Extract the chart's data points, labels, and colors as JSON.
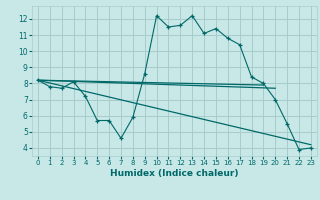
{
  "xlabel": "Humidex (Indice chaleur)",
  "bg_color": "#c8e8e8",
  "grid_color": "#a8cccc",
  "line_color": "#006868",
  "xlim": [
    -0.5,
    23.5
  ],
  "ylim": [
    3.5,
    12.8
  ],
  "yticks": [
    4,
    5,
    6,
    7,
    8,
    9,
    10,
    11,
    12
  ],
  "xticks": [
    0,
    1,
    2,
    3,
    4,
    5,
    6,
    7,
    8,
    9,
    10,
    11,
    12,
    13,
    14,
    15,
    16,
    17,
    18,
    19,
    20,
    21,
    22,
    23
  ],
  "line1_x": [
    0,
    1,
    2,
    3,
    4,
    5,
    6,
    7,
    8,
    9,
    10,
    11,
    12,
    13,
    14,
    15,
    16,
    17,
    18,
    19,
    20,
    21,
    22,
    23
  ],
  "line1_y": [
    8.2,
    7.8,
    7.7,
    8.1,
    7.2,
    5.7,
    5.7,
    4.6,
    5.9,
    8.6,
    12.2,
    11.5,
    11.6,
    12.2,
    11.1,
    11.4,
    10.8,
    10.4,
    8.4,
    8.0,
    7.0,
    5.5,
    3.9,
    4.0
  ],
  "line2_x": [
    0,
    19
  ],
  "line2_y": [
    8.2,
    7.9
  ],
  "line3_x": [
    0,
    20
  ],
  "line3_y": [
    8.2,
    7.7
  ],
  "line4_x": [
    0,
    23
  ],
  "line4_y": [
    8.2,
    4.2
  ]
}
